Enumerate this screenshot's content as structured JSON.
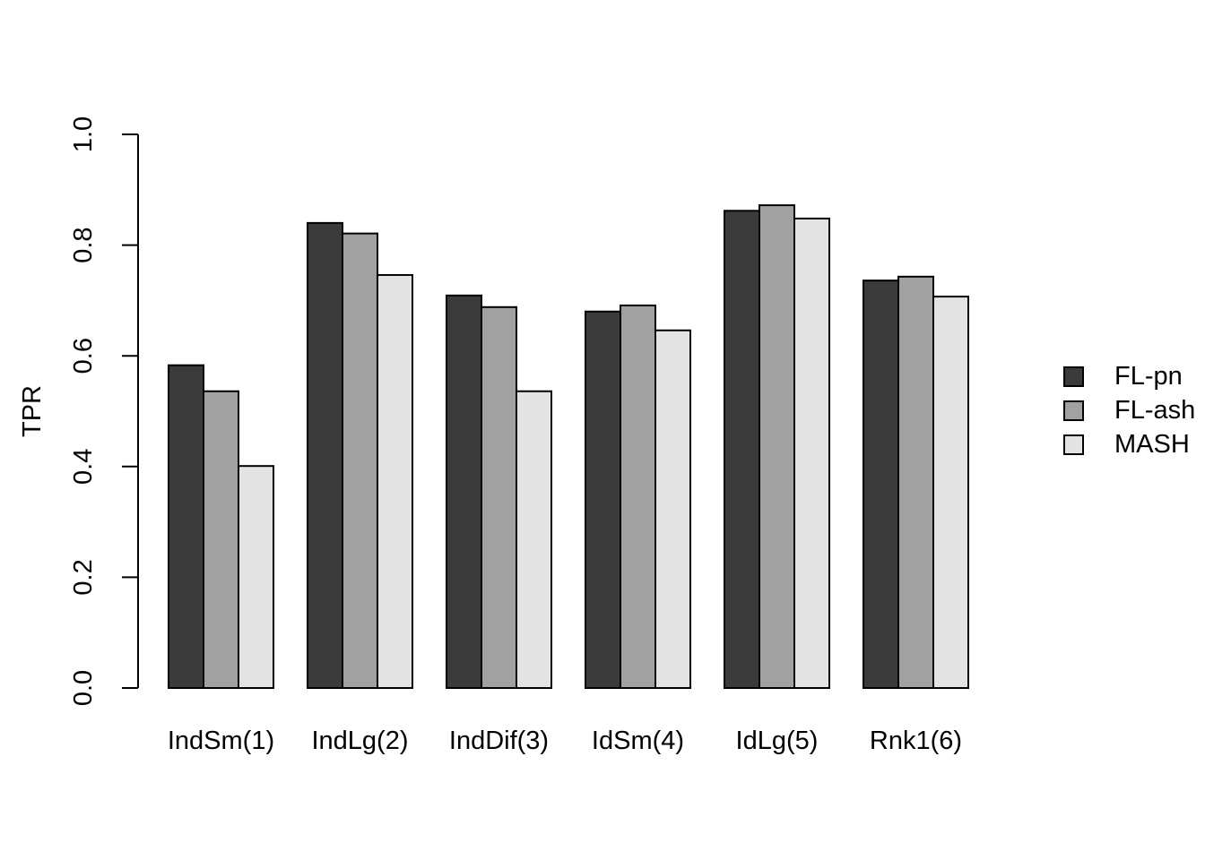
{
  "figure": {
    "background_color": "#ffffff",
    "text_color": "#000000"
  },
  "chart_data": {
    "type": "bar",
    "title": "",
    "xlabel": "",
    "ylabel": "TPR",
    "ylim": [
      0.0,
      1.0
    ],
    "yticks": [
      0.0,
      0.2,
      0.4,
      0.6,
      0.8,
      1.0
    ],
    "ytick_labels": [
      "0.0",
      "0.2",
      "0.4",
      "0.6",
      "0.8",
      "1.0"
    ],
    "categories": [
      "IndSm(1)",
      "IndLg(2)",
      "IndDif(3)",
      "IdSm(4)",
      "IdLg(5)",
      "Rnk1(6)"
    ],
    "series": [
      {
        "name": "FL-pn",
        "color": "#3b3b3b",
        "values": [
          0.583,
          0.84,
          0.709,
          0.68,
          0.862,
          0.736
        ]
      },
      {
        "name": "FL-ash",
        "color": "#a1a1a1",
        "values": [
          0.536,
          0.821,
          0.688,
          0.691,
          0.872,
          0.743
        ]
      },
      {
        "name": "MASH",
        "color": "#e3e3e3",
        "values": [
          0.401,
          0.746,
          0.536,
          0.646,
          0.848,
          0.707
        ]
      }
    ],
    "bar_border_color": "#000000",
    "axis_color": "#000000",
    "grid": false,
    "legend_position": "right"
  }
}
